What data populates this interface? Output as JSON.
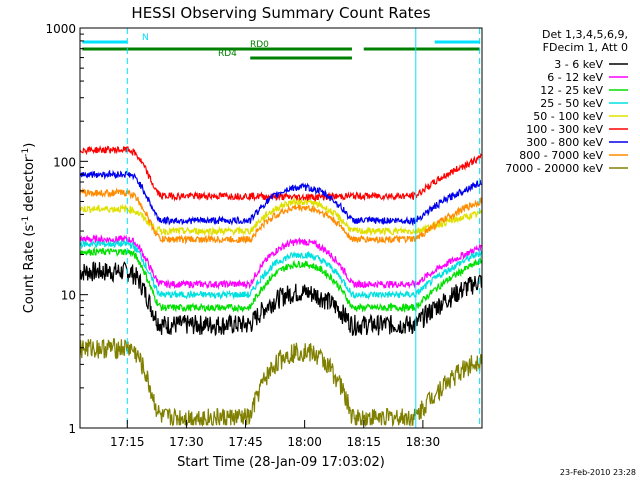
{
  "chart_data": {
    "type": "line",
    "title": "HESSI Observing Summary Count Rates",
    "xlabel": "Start Time (28-Jan-09 17:03:02)",
    "ylabel_main": "Count Rate (s",
    "ylabel_sup1": "-1",
    "ylabel_mid": " detector",
    "ylabel_sup2": "-1",
    "ylabel_end": ")",
    "yscale": "log",
    "ylim": [
      1,
      1000
    ],
    "xlim_minutes": [
      17.05,
      18.75
    ],
    "x_ticks": [
      {
        "minute": 17.25,
        "label": "17:15"
      },
      {
        "minute": 17.5,
        "label": "17:30"
      },
      {
        "minute": 17.75,
        "label": "17:45"
      },
      {
        "minute": 18.0,
        "label": "18:00"
      },
      {
        "minute": 18.25,
        "label": "18:15"
      },
      {
        "minute": 18.5,
        "label": "18:30"
      }
    ],
    "y_ticks": [
      {
        "value": 1,
        "label": "1"
      },
      {
        "value": 10,
        "label": "10"
      },
      {
        "value": 100,
        "label": "100"
      },
      {
        "value": 1000,
        "label": "1000"
      }
    ],
    "legend_header": [
      "Det 1,3,4,5,6,9,",
      "FDecim 1, Att 0"
    ],
    "series": [
      {
        "name": "3 - 6 keV",
        "color": "#000000",
        "day": 15,
        "night": 6,
        "peak": 10.5
      },
      {
        "name": "6 - 12 keV",
        "color": "#ff00ff",
        "day": 26,
        "night": 12,
        "peak": 25
      },
      {
        "name": "12 - 25 keV",
        "color": "#00e000",
        "day": 21,
        "night": 8,
        "peak": 17
      },
      {
        "name": "25 - 50 keV",
        "color": "#00e0e0",
        "day": 24,
        "night": 10,
        "peak": 20
      },
      {
        "name": "50 - 100 keV",
        "color": "#e0e000",
        "day": 44,
        "night": 30,
        "peak": 50
      },
      {
        "name": "100 - 300 keV",
        "color": "#ff0000",
        "day": 122,
        "night": 55,
        "peak": 54
      },
      {
        "name": "300 - 800 keV",
        "color": "#0000ee",
        "day": 80,
        "night": 36,
        "peak": 64
      },
      {
        "name": "800 - 7000 keV",
        "color": "#ff8c00",
        "day": 58,
        "night": 26,
        "peak": 45
      },
      {
        "name": "7000 - 20000 keV",
        "color": "#808000",
        "day": 4,
        "night": 1.2,
        "peak": 3.8
      }
    ],
    "flags": [
      {
        "label": "N",
        "color": "#00e0ff",
        "segments": [
          [
            17.06,
            17.25
          ],
          [
            18.55,
            18.74
          ]
        ]
      },
      {
        "label": "RD0",
        "color": "#008000",
        "segments": [
          [
            17.06,
            18.2
          ],
          [
            18.25,
            18.74
          ]
        ]
      },
      {
        "label": "RD4",
        "color": "#008000",
        "segments": [
          [
            17.77,
            18.2
          ]
        ]
      }
    ],
    "vlines": [
      {
        "minute": 17.05,
        "style": "solid"
      },
      {
        "minute": 17.25,
        "style": "dashed"
      },
      {
        "minute": 18.47,
        "style": "solid"
      },
      {
        "minute": 18.74,
        "style": "dashed"
      }
    ],
    "footer_date": "23-Feb-2010 23:28"
  }
}
